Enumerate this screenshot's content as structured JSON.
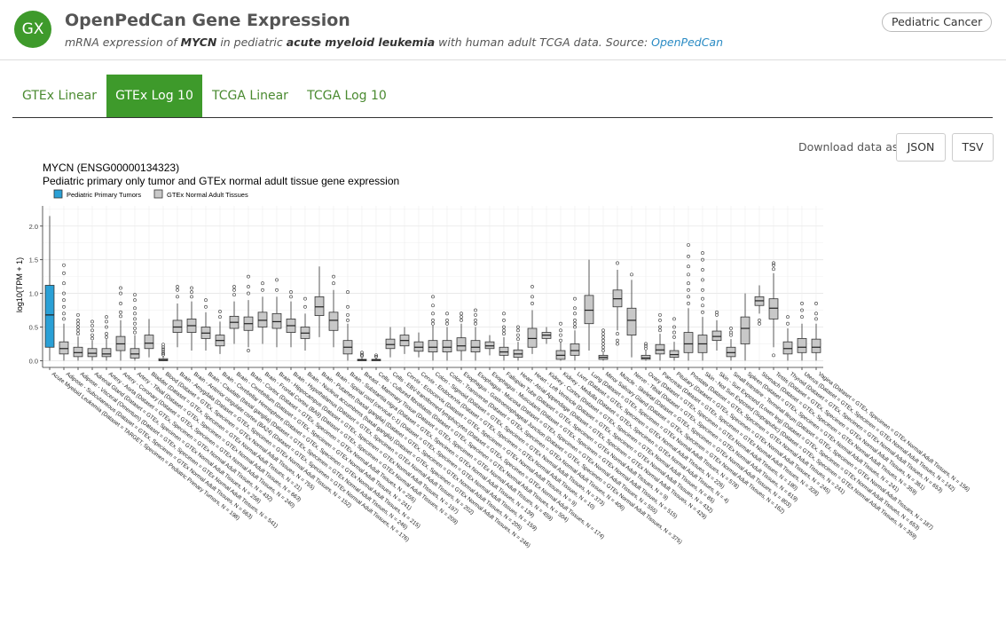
{
  "header": {
    "logo_text": "GX",
    "title": "OpenPedCan Gene Expression",
    "subtitle_pre": "mRNA expression of ",
    "gene": "MYCN",
    "subtitle_mid": " in pediatric ",
    "disease": "acute myeloid leukemia",
    "subtitle_post": " with human adult TCGA data. Source: ",
    "source_link": "OpenPedCan",
    "badge": "Pediatric Cancer"
  },
  "tabs": [
    {
      "label": "GTEx Linear",
      "active": false
    },
    {
      "label": "GTEx Log 10",
      "active": true
    },
    {
      "label": "TCGA Linear",
      "active": false
    },
    {
      "label": "TCGA Log 10",
      "active": false
    }
  ],
  "download": {
    "label": "Download data as",
    "json": "JSON",
    "tsv": "TSV"
  },
  "colors": {
    "accent": "#3e9a2b",
    "tumor_fill": "#2aa0d6",
    "normal_fill": "#c8c8c8",
    "link": "#2a8bc4"
  },
  "chart_data": {
    "type": "box",
    "title": "MYCN (ENSG00000134323)",
    "subtitle": "Pediatric primary only tumor and GTEx normal adult tissue gene expression",
    "ylabel": "log10(TPM + 1)",
    "xlabel": "",
    "ylim": [
      -0.1,
      2.3
    ],
    "yticks": [
      "0.0",
      "0.5",
      "1.0",
      "1.5",
      "2.0"
    ],
    "grid": true,
    "legend_position": "top-left",
    "legend": [
      {
        "name": "Pediatric Primary Tumors",
        "color": "#2aa0d6"
      },
      {
        "name": "GTEx Normal Adult Tissues",
        "color": "#c8c8c8"
      }
    ],
    "series": [
      {
        "label": "Acute Myeloid Leukemia (Dataset = TARGET, Specimen = Pediatric Primary Tumors, N = 198)",
        "group": "tumor",
        "min": 0.0,
        "q1": 0.2,
        "median": 0.68,
        "q3": 1.12,
        "max": 2.15,
        "outliers": []
      },
      {
        "label": "Adipose - Subcutaneous (Dataset = GTEx, Specimen = GTEx Normal Adult Tissues, N = 663)",
        "group": "normal",
        "min": 0.0,
        "q1": 0.1,
        "median": 0.18,
        "q3": 0.28,
        "max": 0.55,
        "outliers": [
          0.62,
          0.7,
          0.8,
          0.9,
          1.0,
          1.15,
          1.3,
          1.42
        ]
      },
      {
        "label": "Adipose - Visceral (Omentum) (Dataset = GTEx, Specimen = GTEx Normal Adult Tissues, N = 541)",
        "group": "normal",
        "min": 0.0,
        "q1": 0.06,
        "median": 0.12,
        "q3": 0.2,
        "max": 0.36,
        "outliers": [
          0.4,
          0.45,
          0.5,
          0.55,
          0.6,
          0.68
        ]
      },
      {
        "label": "Adrenal Gland (Dataset = GTEx, Specimen = GTEx Normal Adult Tissues, N = 258)",
        "group": "normal",
        "min": 0.0,
        "q1": 0.06,
        "median": 0.11,
        "q3": 0.18,
        "max": 0.3,
        "outliers": [
          0.33,
          0.38,
          0.45,
          0.52,
          0.58
        ]
      },
      {
        "label": "Artery - Aorta (Dataset = GTEx, Specimen = GTEx Normal Adult Tissues, N = 432)",
        "group": "normal",
        "min": 0.0,
        "q1": 0.06,
        "median": 0.1,
        "q3": 0.18,
        "max": 0.32,
        "outliers": [
          0.35,
          0.4,
          0.5,
          0.58,
          0.65
        ]
      },
      {
        "label": "Artery - Coronary (Dataset = GTEx, Specimen = GTEx Normal Adult Tissues, N = 240)",
        "group": "normal",
        "min": 0.0,
        "q1": 0.15,
        "median": 0.25,
        "q3": 0.36,
        "max": 0.6,
        "outliers": [
          0.66,
          0.72,
          0.85,
          1.0,
          1.08
        ]
      },
      {
        "label": "Artery - Tibial (Dataset = GTEx, Specimen = GTEx Normal Adult Tissues, N = 663)",
        "group": "normal",
        "min": 0.0,
        "q1": 0.04,
        "median": 0.1,
        "q3": 0.18,
        "max": 0.38,
        "outliers": [
          0.42,
          0.48,
          0.55,
          0.62,
          0.7,
          0.78,
          0.9,
          0.98
        ]
      },
      {
        "label": "Bladder (Dataset = GTEx, Specimen = GTEx Normal Adult Tissues, N = 21)",
        "group": "normal",
        "min": 0.05,
        "q1": 0.18,
        "median": 0.26,
        "q3": 0.38,
        "max": 0.62,
        "outliers": []
      },
      {
        "label": "Blood (Dataset = GTEx, Specimen = GTEx Normal Adult Tissues, N = 755)",
        "group": "normal",
        "min": 0.0,
        "q1": 0.0,
        "median": 0.01,
        "q3": 0.03,
        "max": 0.07,
        "outliers": [
          0.09,
          0.11,
          0.14,
          0.17,
          0.2,
          0.24
        ]
      },
      {
        "label": "Brain - Amygdala (Dataset = GTEx, Specimen = GTEx Normal Adult Tissues, N = 152)",
        "group": "normal",
        "min": 0.2,
        "q1": 0.42,
        "median": 0.5,
        "q3": 0.6,
        "max": 0.85,
        "outliers": [
          0.95,
          1.05,
          1.1
        ]
      },
      {
        "label": "Brain - Anterior cingulate cortex (BA24) (Dataset = GTEx, Specimen = GTEx Normal Adult Tissues, N = 176)",
        "group": "normal",
        "min": 0.15,
        "q1": 0.42,
        "median": 0.52,
        "q3": 0.62,
        "max": 0.88,
        "outliers": [
          0.95,
          1.02,
          1.08
        ]
      },
      {
        "label": "Brain - Caudate (basal ganglia) (Dataset = GTEx, Specimen = GTEx Normal Adult Tissues, N = 246)",
        "group": "normal",
        "min": 0.15,
        "q1": 0.33,
        "median": 0.41,
        "q3": 0.5,
        "max": 0.72,
        "outliers": [
          0.8,
          0.9
        ]
      },
      {
        "label": "Brain - Cerebellar Hemisphere (Dataset = GTEx, Specimen = GTEx Normal Adult Tissues, N = 215)",
        "group": "normal",
        "min": 0.1,
        "q1": 0.22,
        "median": 0.3,
        "q3": 0.38,
        "max": 0.58,
        "outliers": [
          0.65,
          0.73
        ]
      },
      {
        "label": "Brain - Cerebellum (Dataset = GTEx, Specimen = GTEx Normal Adult Tissues, N = 241)",
        "group": "normal",
        "min": 0.25,
        "q1": 0.48,
        "median": 0.57,
        "q3": 0.66,
        "max": 0.88,
        "outliers": [
          0.98,
          1.05,
          1.1
        ]
      },
      {
        "label": "Brain - Cortex (Dataset = GTEx, Specimen = GTEx Normal Adult Tissues, N = 255)",
        "group": "normal",
        "min": 0.2,
        "q1": 0.45,
        "median": 0.55,
        "q3": 0.65,
        "max": 0.9,
        "outliers": [
          0.15,
          1.0,
          1.1,
          1.25
        ]
      },
      {
        "label": "Brain - Frontal Cortex (BA9) (Dataset = GTEx, Specimen = GTEx Normal Adult Tissues, N = 209)",
        "group": "normal",
        "min": 0.25,
        "q1": 0.5,
        "median": 0.6,
        "q3": 0.72,
        "max": 0.95,
        "outliers": [
          1.05,
          1.15
        ]
      },
      {
        "label": "Brain - Hippocampus (Dataset = GTEx, Specimen = GTEx Normal Adult Tissues, N = 197)",
        "group": "normal",
        "min": 0.2,
        "q1": 0.48,
        "median": 0.58,
        "q3": 0.7,
        "max": 0.95,
        "outliers": [
          1.05,
          1.2
        ]
      },
      {
        "label": "Brain - Hypothalamus (Dataset = GTEx, Specimen = GTEx Normal Adult Tissues, N = 202)",
        "group": "normal",
        "min": 0.2,
        "q1": 0.42,
        "median": 0.52,
        "q3": 0.62,
        "max": 0.88,
        "outliers": [
          0.95,
          1.02
        ]
      },
      {
        "label": "Brain - Nucleus accumbens (basal ganglia) (Dataset = GTEx, Specimen = GTEx Normal Adult Tissues, N = 246)",
        "group": "normal",
        "min": 0.15,
        "q1": 0.33,
        "median": 0.41,
        "q3": 0.5,
        "max": 0.7,
        "outliers": [
          0.8,
          0.92
        ]
      },
      {
        "label": "Brain - Putamen (basal ganglia) (Dataset = GTEx, Specimen = GTEx Normal Adult Tissues, N = 205)",
        "group": "normal",
        "min": 0.35,
        "q1": 0.67,
        "median": 0.8,
        "q3": 0.95,
        "max": 1.4,
        "outliers": []
      },
      {
        "label": "Brain - Spinal cord (cervical c-1) (Dataset = GTEx, Specimen = GTEx Normal Adult Tissues, N = 159)",
        "group": "normal",
        "min": 0.2,
        "q1": 0.45,
        "median": 0.6,
        "q3": 0.72,
        "max": 1.05,
        "outliers": [
          1.15,
          1.25
        ]
      },
      {
        "label": "Brain - Substantia nigra (Dataset = GTEx, Specimen = GTEx Normal Adult Tissues, N = 139)",
        "group": "normal",
        "min": 0.0,
        "q1": 0.1,
        "median": 0.2,
        "q3": 0.3,
        "max": 0.55,
        "outliers": [
          0.6,
          0.68,
          0.8,
          1.02
        ]
      },
      {
        "label": "Breast - Mammary Tissue (Dataset = GTEx, Specimen = GTEx Normal Adult Tissues, N = 459)",
        "group": "normal",
        "min": 0.0,
        "q1": 0.0,
        "median": 0.01,
        "q3": 0.02,
        "max": 0.05,
        "outliers": [
          0.07,
          0.09,
          0.12
        ]
      },
      {
        "label": "Cells - Cultured fibroblasts (Dataset = GTEx, Specimen = GTEx Normal Adult Tissues, N = 504)",
        "group": "normal",
        "min": 0.0,
        "q1": 0.0,
        "median": 0.01,
        "q3": 0.02,
        "max": 0.04,
        "outliers": [
          0.06,
          0.08
        ]
      },
      {
        "label": "Cells - EBV-transformed lymphocytes (Dataset = GTEx, Specimen = GTEx Normal Adult Tissues, N = 174)",
        "group": "normal",
        "min": 0.05,
        "q1": 0.18,
        "median": 0.24,
        "q3": 0.32,
        "max": 0.5,
        "outliers": []
      },
      {
        "label": "Cervix - Ectocervix (Dataset = GTEx, Specimen = GTEx Normal Adult Tissues, N = 9)",
        "group": "normal",
        "min": 0.1,
        "q1": 0.22,
        "median": 0.3,
        "q3": 0.38,
        "max": 0.5,
        "outliers": []
      },
      {
        "label": "Cervix - Endocervix (Dataset = GTEx, Specimen = GTEx Normal Adult Tissues, N = 10)",
        "group": "normal",
        "min": 0.05,
        "q1": 0.14,
        "median": 0.2,
        "q3": 0.28,
        "max": 0.42,
        "outliers": []
      },
      {
        "label": "Colon - Sigmoid (Dataset = GTEx, Specimen = GTEx Normal Adult Tissues, N = 373)",
        "group": "normal",
        "min": 0.0,
        "q1": 0.13,
        "median": 0.2,
        "q3": 0.3,
        "max": 0.52,
        "outliers": [
          0.55,
          0.6,
          0.7,
          0.82,
          0.95
        ]
      },
      {
        "label": "Colon - Transverse (Dataset = GTEx, Specimen = GTEx Normal Adult Tissues, N = 406)",
        "group": "normal",
        "min": 0.0,
        "q1": 0.13,
        "median": 0.2,
        "q3": 0.3,
        "max": 0.5,
        "outliers": [
          0.55,
          0.6,
          0.7
        ]
      },
      {
        "label": "Esophagus - Gastroesophageal Junction (Dataset = GTEx, Specimen = GTEx Normal Adult Tissues, N = 375)",
        "group": "normal",
        "min": 0.0,
        "q1": 0.15,
        "median": 0.22,
        "q3": 0.34,
        "max": 0.55,
        "outliers": [
          0.6,
          0.65,
          0.7
        ]
      },
      {
        "label": "Esophagus - Mucosa (Dataset = GTEx, Specimen = GTEx Normal Adult Tissues, N = 555)",
        "group": "normal",
        "min": 0.0,
        "q1": 0.13,
        "median": 0.2,
        "q3": 0.3,
        "max": 0.5,
        "outliers": [
          0.55,
          0.6,
          0.68,
          0.75
        ]
      },
      {
        "label": "Esophagus - Muscularis (Dataset = GTEx, Specimen = GTEx Normal Adult Tissues, N = 515)",
        "group": "normal",
        "min": 0.08,
        "q1": 0.18,
        "median": 0.22,
        "q3": 0.28,
        "max": 0.38,
        "outliers": []
      },
      {
        "label": "Fallopian Tube (Dataset = GTEx, Specimen = GTEx Normal Adult Tissues, N = 9)",
        "group": "normal",
        "min": 0.0,
        "q1": 0.08,
        "median": 0.13,
        "q3": 0.2,
        "max": 0.35,
        "outliers": [
          0.4,
          0.45,
          0.5,
          0.6,
          0.7
        ]
      },
      {
        "label": "Heart - Atrial Appendage (Dataset = GTEx, Specimen = GTEx Normal Adult Tissues, N = 429)",
        "group": "normal",
        "min": 0.0,
        "q1": 0.05,
        "median": 0.1,
        "q3": 0.16,
        "max": 0.28,
        "outliers": [
          0.32,
          0.38,
          0.45,
          0.5
        ]
      },
      {
        "label": "Heart - Left Ventricle (Dataset = GTEx, Specimen = GTEx Normal Adult Tissues, N = 432)",
        "group": "normal",
        "min": 0.1,
        "q1": 0.2,
        "median": 0.33,
        "q3": 0.48,
        "max": 0.75,
        "outliers": [
          0.85,
          0.95,
          1.1
        ]
      },
      {
        "label": "Kidney - Cortex (Dataset = GTEx, Specimen = GTEx Normal Adult Tissues, N = 85)",
        "group": "normal",
        "min": 0.25,
        "q1": 0.33,
        "median": 0.38,
        "q3": 0.42,
        "max": 0.5,
        "outliers": []
      },
      {
        "label": "Kidney - Medulla (Dataset = GTEx, Specimen = GTEx Normal Adult Tissues, N = 4)",
        "group": "normal",
        "min": 0.0,
        "q1": 0.02,
        "median": 0.08,
        "q3": 0.15,
        "max": 0.28,
        "outliers": [
          0.3,
          0.38,
          0.45,
          0.55
        ]
      },
      {
        "label": "Liver (Dataset = GTEx, Specimen = GTEx Normal Adult Tissues, N = 226)",
        "group": "normal",
        "min": 0.0,
        "q1": 0.08,
        "median": 0.15,
        "q3": 0.25,
        "max": 0.45,
        "outliers": [
          0.5,
          0.55,
          0.6,
          0.7,
          0.78,
          0.92
        ]
      },
      {
        "label": "Lung (Dataset = GTEx, Specimen = GTEx Normal Adult Tissues, N = 578)",
        "group": "normal",
        "min": 0.15,
        "q1": 0.55,
        "median": 0.75,
        "q3": 0.97,
        "max": 1.5,
        "outliers": []
      },
      {
        "label": "Minor Salivary Gland (Dataset = GTEx, Specimen = GTEx Normal Adult Tissues, N = 162)",
        "group": "normal",
        "min": 0.0,
        "q1": 0.02,
        "median": 0.05,
        "q3": 0.08,
        "max": 0.12,
        "outliers": [
          0.15,
          0.2,
          0.25,
          0.3,
          0.35,
          0.4,
          0.45
        ]
      },
      {
        "label": "Muscle - Skeletal (Dataset = GTEx, Specimen = GTEx Normal Adult Tissues, N = 803)",
        "group": "normal",
        "min": 0.45,
        "q1": 0.8,
        "median": 0.92,
        "q3": 1.05,
        "max": 1.35,
        "outliers": [
          0.25,
          0.3,
          0.4,
          1.45
        ]
      },
      {
        "label": "Nerve - Tibial (Dataset = GTEx, Specimen = GTEx Normal Adult Tissues, N = 619)",
        "group": "normal",
        "min": 0.05,
        "q1": 0.38,
        "median": 0.6,
        "q3": 0.78,
        "max": 1.2,
        "outliers": [
          1.28
        ]
      },
      {
        "label": "Ovary (Dataset = GTEx, Specimen = GTEx Normal Adult Tissues, N = 180)",
        "group": "normal",
        "min": 0.0,
        "q1": 0.02,
        "median": 0.04,
        "q3": 0.08,
        "max": 0.15,
        "outliers": [
          0.18,
          0.22,
          0.25
        ]
      },
      {
        "label": "Pancreas (Dataset = GTEx, Specimen = GTEx Normal Adult Tissues, N = 328)",
        "group": "normal",
        "min": 0.0,
        "q1": 0.1,
        "median": 0.16,
        "q3": 0.24,
        "max": 0.4,
        "outliers": [
          0.45,
          0.5,
          0.6,
          0.68
        ]
      },
      {
        "label": "Pituitary (Dataset = GTEx, Specimen = GTEx Normal Adult Tissues, N = 245)",
        "group": "normal",
        "min": 0.0,
        "q1": 0.05,
        "median": 0.09,
        "q3": 0.15,
        "max": 0.28,
        "outliers": [
          0.35,
          0.42,
          0.5,
          0.62
        ]
      },
      {
        "label": "Prostate (Dataset = GTEx, Specimen = GTEx Normal Adult Tissues, N = 241)",
        "group": "normal",
        "min": 0.0,
        "q1": 0.12,
        "median": 0.25,
        "q3": 0.42,
        "max": 0.78,
        "outliers": [
          0.85,
          0.95,
          1.05,
          1.15,
          1.28,
          1.4,
          1.55,
          1.72
        ]
      },
      {
        "label": "Skin - Not Sun Exposed (Suprapubic) (Dataset = GTEx, Specimen = GTEx Normal Adult Tissues, N = 359)",
        "group": "normal",
        "min": 0.0,
        "q1": 0.12,
        "median": 0.25,
        "q3": 0.38,
        "max": 0.65,
        "outliers": [
          0.72,
          0.82,
          0.92,
          1.05,
          1.2,
          1.35,
          1.5,
          1.6
        ]
      },
      {
        "label": "Skin - Sun Exposed (Lower leg) (Dataset = GTEx, Specimen = GTEx Normal Adult Tissues, N = 653)",
        "group": "normal",
        "min": 0.15,
        "q1": 0.3,
        "median": 0.36,
        "q3": 0.44,
        "max": 0.6,
        "outliers": [
          0.68,
          0.72
        ]
      },
      {
        "label": "Small Intestine - Terminal Ileum (Dataset = GTEx, Specimen = GTEx Normal Adult Tissues, N = 187)",
        "group": "normal",
        "min": 0.0,
        "q1": 0.06,
        "median": 0.12,
        "q3": 0.2,
        "max": 0.32,
        "outliers": [
          0.38,
          0.42,
          0.48
        ]
      },
      {
        "label": "Spleen (Dataset = GTEx, Specimen = GTEx Normal Adult Tissues, N = 241)",
        "group": "normal",
        "min": 0.0,
        "q1": 0.25,
        "median": 0.48,
        "q3": 0.65,
        "max": 1.0,
        "outliers": []
      },
      {
        "label": "Stomach (Dataset = GTEx, Specimen = GTEx Normal Adult Tissues, N = 359)",
        "group": "normal",
        "min": 0.7,
        "q1": 0.82,
        "median": 0.89,
        "q3": 0.95,
        "max": 1.12,
        "outliers": [
          0.55,
          0.6
        ]
      },
      {
        "label": "Testis (Dataset = GTEx, Specimen = GTEx Normal Adult Tissues, N = 361)",
        "group": "normal",
        "min": 0.2,
        "q1": 0.62,
        "median": 0.78,
        "q3": 0.92,
        "max": 1.3,
        "outliers": [
          0.08,
          1.36,
          1.42,
          1.45
        ]
      },
      {
        "label": "Thyroid (Dataset = GTEx, Specimen = GTEx Normal Adult Tissues, N = 653)",
        "group": "normal",
        "min": 0.0,
        "q1": 0.1,
        "median": 0.18,
        "q3": 0.28,
        "max": 0.48,
        "outliers": [
          0.55,
          0.65
        ]
      },
      {
        "label": "Uterus (Dataset = GTEx, Specimen = GTEx Normal Adult Tissues, N = 142)",
        "group": "normal",
        "min": 0.0,
        "q1": 0.12,
        "median": 0.2,
        "q3": 0.33,
        "max": 0.55,
        "outliers": [
          0.65,
          0.75,
          0.85
        ]
      },
      {
        "label": "Vagina (Dataset = GTEx, Specimen = GTEx Normal Adult Tissues, N = 156)",
        "group": "normal",
        "min": 0.0,
        "q1": 0.12,
        "median": 0.2,
        "q3": 0.32,
        "max": 0.55,
        "outliers": [
          0.62,
          0.7,
          0.85
        ]
      }
    ]
  }
}
